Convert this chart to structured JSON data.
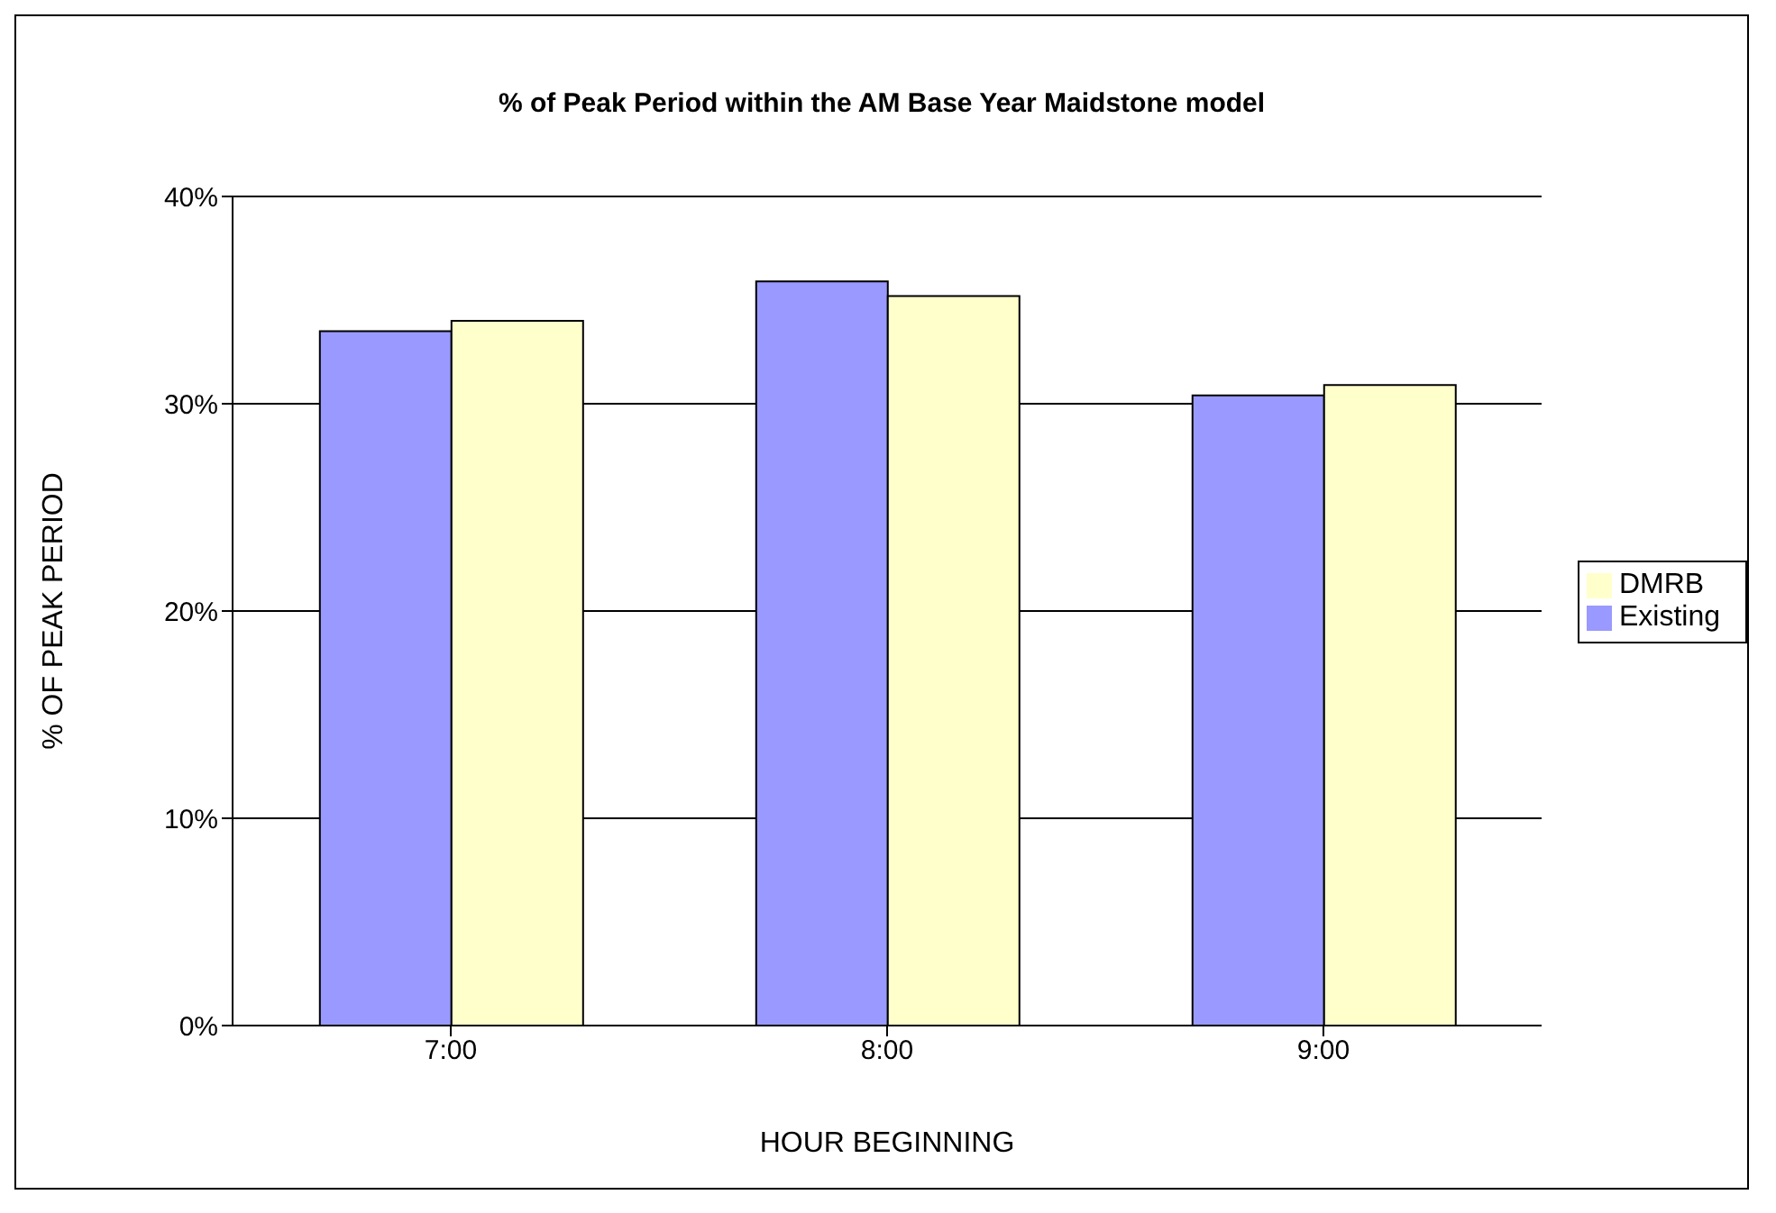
{
  "chart_data": {
    "type": "bar",
    "title": "% of Peak Period within the AM Base Year Maidstone model",
    "xlabel": "HOUR BEGINNING",
    "ylabel": "% OF PEAK PERIOD",
    "categories": [
      "7:00",
      "8:00",
      "9:00"
    ],
    "series": [
      {
        "name": "Existing",
        "color": "#9999ff",
        "values": [
          33.5,
          35.9,
          30.4
        ]
      },
      {
        "name": "DMRB",
        "color": "#ffffcc",
        "values": [
          34.0,
          35.2,
          30.9
        ]
      }
    ],
    "ylim": [
      0,
      40
    ],
    "yticks": [
      {
        "value": 0,
        "label": "0%"
      },
      {
        "value": 10,
        "label": "10%"
      },
      {
        "value": 20,
        "label": "20%"
      },
      {
        "value": 30,
        "label": "30%"
      },
      {
        "value": 40,
        "label": "40%"
      }
    ],
    "grid": "y",
    "legend": "right"
  }
}
